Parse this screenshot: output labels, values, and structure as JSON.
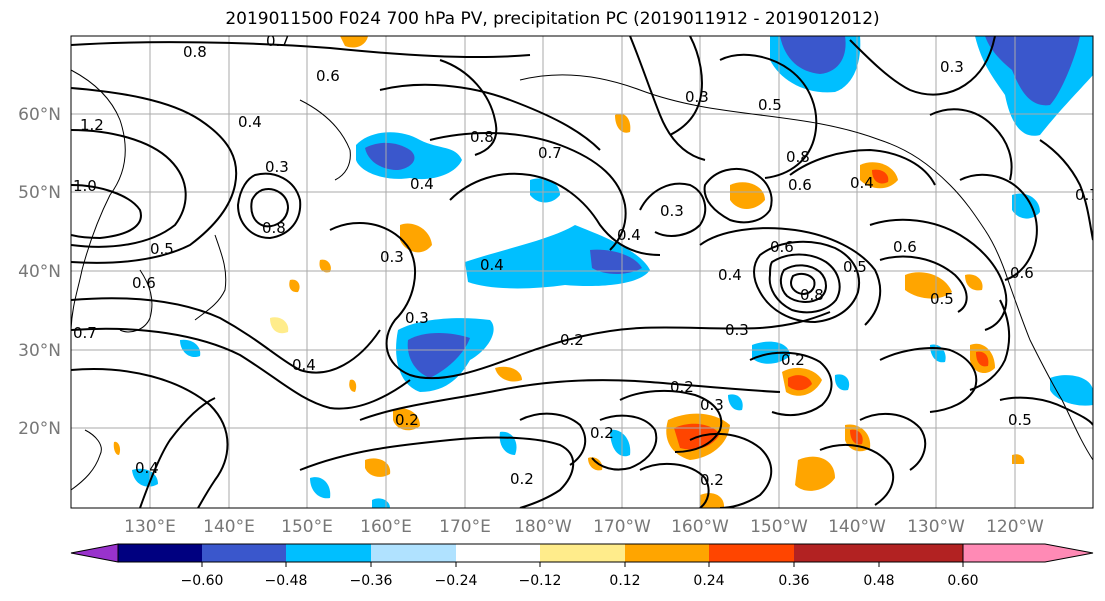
{
  "title": "2019011500 F024 700 hPa PV, precipitation PC (2019011912 - 2019012012)",
  "map": {
    "lat_labels": [
      "60°N",
      "50°N",
      "40°N",
      "30°N",
      "20°N"
    ],
    "lon_labels": [
      "130°E",
      "140°E",
      "150°E",
      "160°E",
      "170°E",
      "180°W",
      "170°W",
      "160°W",
      "150°W",
      "140°W",
      "130°W",
      "120°W"
    ],
    "contour_labels": [
      "0.8",
      "0.6",
      "0.7",
      "1.2",
      "1.0",
      "0.4",
      "0.3",
      "0.8",
      "0.5",
      "0.6",
      "0.7",
      "0.4",
      "0.3",
      "0.4",
      "0.3",
      "0.8",
      "0.7",
      "0.3",
      "0.4",
      "0.5",
      "0.3",
      "0.6",
      "0.8",
      "0.4",
      "0.6",
      "0.8",
      "0.5",
      "0.6",
      "0.4",
      "0.5",
      "0.3",
      "0.2",
      "0.2",
      "0.3",
      "0.2",
      "0.2",
      "0.2",
      "0.2",
      "0.4",
      "0.5",
      "0.6",
      "0.2",
      "0.3",
      "0.4",
      "0.7"
    ]
  },
  "colorbar": {
    "colors": [
      "#9932cc",
      "#000080",
      "#3a57cc",
      "#00bfff",
      "#b0e2ff",
      "#ffffff",
      "#ffec8b",
      "#ffa500",
      "#ff4500",
      "#b22222",
      "#ff8ab5"
    ],
    "ticks": [
      "−0.60",
      "−0.48",
      "−0.36",
      "−0.24",
      "−0.12",
      "0.12",
      "0.24",
      "0.36",
      "0.48",
      "0.60"
    ]
  },
  "colors": {
    "contour": "#000000",
    "grid": "#aaaaaa",
    "coast": "#000000"
  }
}
